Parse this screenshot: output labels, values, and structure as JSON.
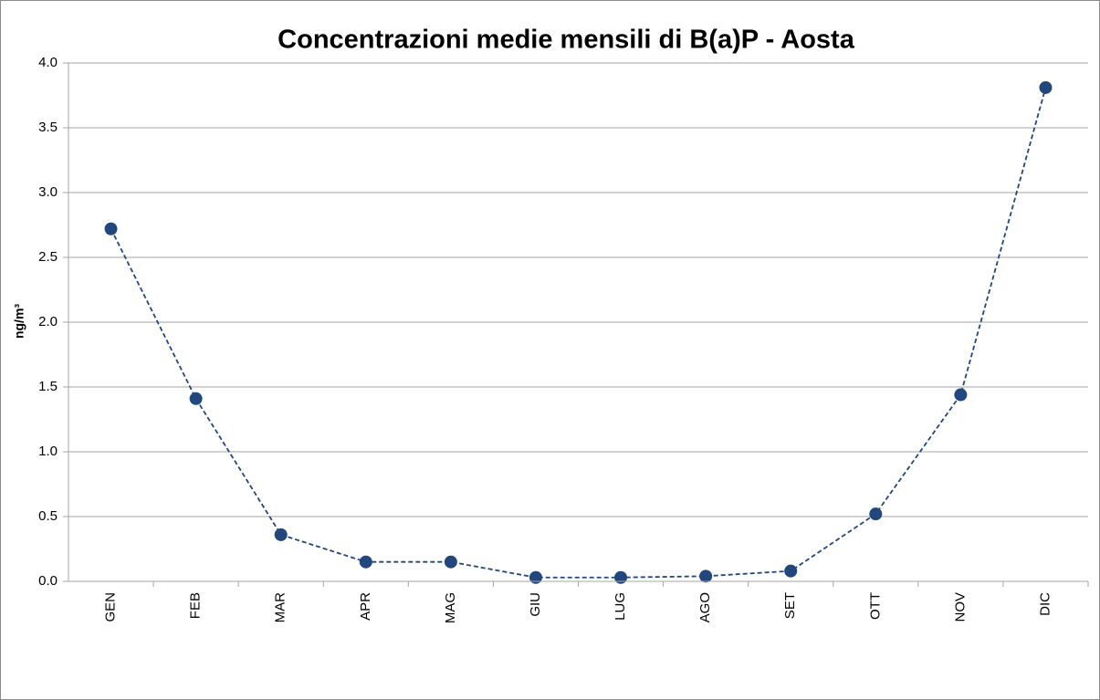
{
  "chart_data": {
    "type": "line",
    "title": "Concentrazioni medie mensili di B(a)P - Aosta",
    "y_label": "ng/m³",
    "categories": [
      "GEN",
      "FEB",
      "MAR",
      "APR",
      "MAG",
      "GIU",
      "LUG",
      "AGO",
      "SET",
      "OTT",
      "NOV",
      "DIC"
    ],
    "series": [
      {
        "name": "B(a)P",
        "color": "#22477d",
        "values": [
          2.72,
          1.41,
          0.36,
          0.15,
          0.15,
          0.03,
          0.03,
          0.04,
          0.08,
          0.52,
          1.44,
          3.81
        ]
      }
    ],
    "ylim": [
      0,
      4
    ],
    "yticks": [
      {
        "value": 0,
        "label": "0.0"
      },
      0.5,
      {
        "value": 1,
        "label": "1.0"
      },
      1.5,
      {
        "value": 2,
        "label": "2.0"
      },
      2.5,
      {
        "value": 3,
        "label": "3.0"
      },
      3.5,
      {
        "value": 4,
        "label": "4.0"
      }
    ],
    "grid": true
  }
}
